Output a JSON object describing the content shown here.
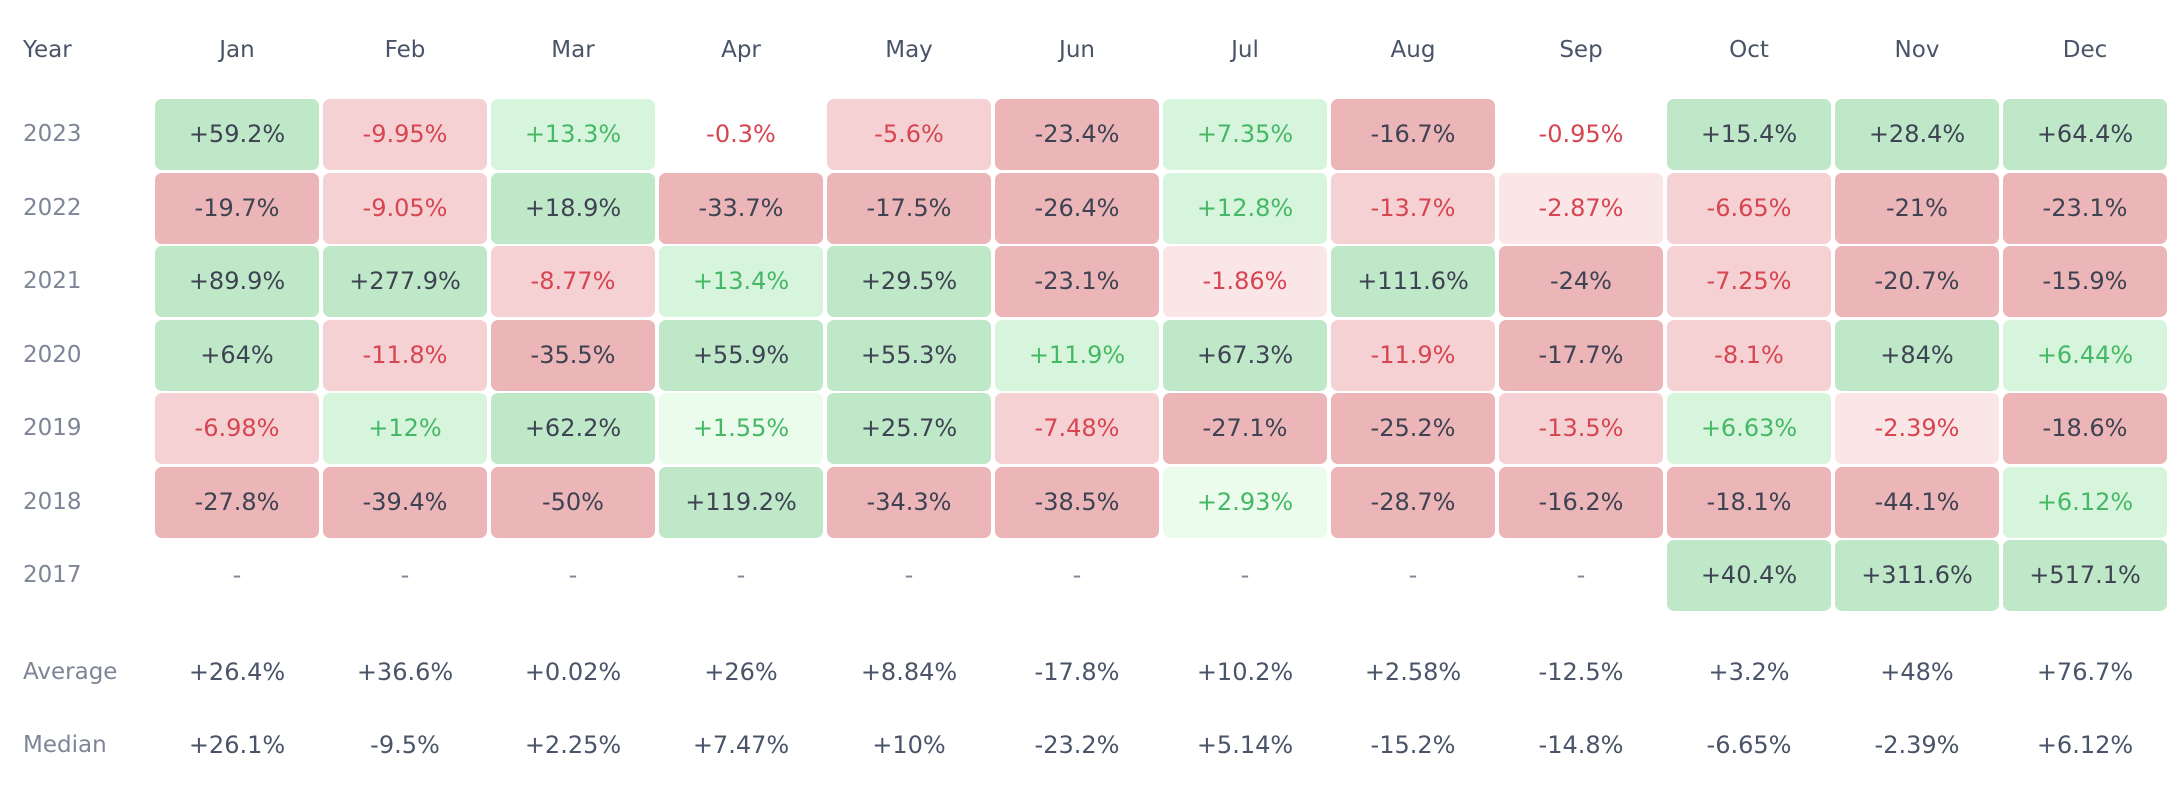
{
  "chart_data": {
    "type": "heatmap",
    "corner_label": "Year",
    "columns": [
      "Jan",
      "Feb",
      "Mar",
      "Apr",
      "May",
      "Jun",
      "Jul",
      "Aug",
      "Sep",
      "Oct",
      "Nov",
      "Dec"
    ],
    "rows": [
      {
        "year": "2023",
        "values": [
          "+59.2%",
          "-9.95%",
          "+13.3%",
          "-0.3%",
          "-5.6%",
          "-23.4%",
          "+7.35%",
          "-16.7%",
          "-0.95%",
          "+15.4%",
          "+28.4%",
          "+64.4%"
        ]
      },
      {
        "year": "2022",
        "values": [
          "-19.7%",
          "-9.05%",
          "+18.9%",
          "-33.7%",
          "-17.5%",
          "-26.4%",
          "+12.8%",
          "-13.7%",
          "-2.87%",
          "-6.65%",
          "-21%",
          "-23.1%"
        ]
      },
      {
        "year": "2021",
        "values": [
          "+89.9%",
          "+277.9%",
          "-8.77%",
          "+13.4%",
          "+29.5%",
          "-23.1%",
          "-1.86%",
          "+111.6%",
          "-24%",
          "-7.25%",
          "-20.7%",
          "-15.9%"
        ]
      },
      {
        "year": "2020",
        "values": [
          "+64%",
          "-11.8%",
          "-35.5%",
          "+55.9%",
          "+55.3%",
          "+11.9%",
          "+67.3%",
          "-11.9%",
          "-17.7%",
          "-8.1%",
          "+84%",
          "+6.44%"
        ]
      },
      {
        "year": "2019",
        "values": [
          "-6.98%",
          "+12%",
          "+62.2%",
          "+1.55%",
          "+25.7%",
          "-7.48%",
          "-27.1%",
          "-25.2%",
          "-13.5%",
          "+6.63%",
          "-2.39%",
          "-18.6%"
        ]
      },
      {
        "year": "2018",
        "values": [
          "-27.8%",
          "-39.4%",
          "-50%",
          "+119.2%",
          "-34.3%",
          "-38.5%",
          "+2.93%",
          "-28.7%",
          "-16.2%",
          "-18.1%",
          "-44.1%",
          "+6.12%"
        ]
      },
      {
        "year": "2017",
        "values": [
          "-",
          "-",
          "-",
          "-",
          "-",
          "-",
          "-",
          "-",
          "-",
          "+40.4%",
          "+311.6%",
          "+517.1%"
        ]
      }
    ],
    "summary": [
      {
        "label": "Average",
        "values": [
          "+26.4%",
          "+36.6%",
          "+0.02%",
          "+26%",
          "+8.84%",
          "-17.8%",
          "+10.2%",
          "+2.58%",
          "-12.5%",
          "+3.2%",
          "+48%",
          "+76.7%"
        ]
      },
      {
        "label": "Median",
        "values": [
          "+26.1%",
          "-9.5%",
          "+2.25%",
          "+7.47%",
          "+10%",
          "-23.2%",
          "+5.14%",
          "-15.2%",
          "-14.8%",
          "-6.65%",
          "-2.39%",
          "+6.12%"
        ]
      }
    ],
    "colors": {
      "neg_strong_bg": "#ecb5b8",
      "neg_strong_text": "#3d4352",
      "neg_mid_bg": "#f5d1d4",
      "neg_mid_text": "#d64550",
      "neg_light_bg": "#fbe6e7",
      "neg_light_text": "#d64550",
      "neg_none_text": "#d64550",
      "pos_strong_bg": "#bfe8c8",
      "pos_strong_text": "#3d4352",
      "pos_mid_bg": "#d7f5dd",
      "pos_mid_text": "#45b865",
      "pos_light_bg": "#ecfcec",
      "pos_light_text": "#45b865",
      "empty_text": "#7d8596"
    }
  }
}
